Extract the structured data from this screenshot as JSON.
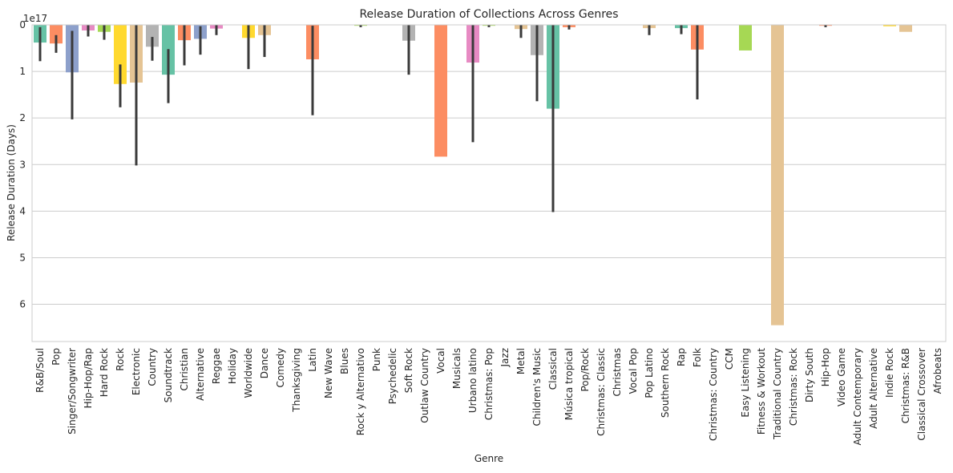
{
  "chart_data": {
    "type": "bar",
    "title": "Release Duration of Collections Across Genres",
    "xlabel": "Genre",
    "ylabel": "Release Duration (Days)",
    "y_offset_label": "1e17",
    "y_axis_inverted": true,
    "ylim": [
      0,
      6.8
    ],
    "y_ticks": [
      0,
      1,
      2,
      3,
      4,
      5,
      6
    ],
    "grid": "horizontal",
    "legend": "none",
    "value_unit_multiplier": "1e17",
    "categories": [
      "R&B/Soul",
      "Pop",
      "Singer/Songwriter",
      "Hip-Hop/Rap",
      "Hard Rock",
      "Rock",
      "Electronic",
      "Country",
      "Soundtrack",
      "Christian",
      "Alternative",
      "Reggae",
      "Holiday",
      "Worldwide",
      "Dance",
      "Comedy",
      "Thanksgiving",
      "Latin",
      "New Wave",
      "Blues",
      "Rock y Alternativo",
      "Punk",
      "Psychedelic",
      "Soft Rock",
      "Outlaw Country",
      "Vocal",
      "Musicals",
      "Urbano latino",
      "Christmas: Pop",
      "Jazz",
      "Metal",
      "Children's Music",
      "Classical",
      "Música tropical",
      "Pop/Rock",
      "Christmas: Classic",
      "Christmas",
      "Vocal Pop",
      "Pop Latino",
      "Southern Rock",
      "Rap",
      "Folk",
      "Christmas: Country",
      "CCM",
      "Easy Listening",
      "Fitness & Workout",
      "Traditional Country",
      "Christmas: Rock",
      "Dirty South",
      "Hip-Hop",
      "Video Game",
      "Adult Contemporary",
      "Adult Alternative",
      "Indie Rock",
      "Christmas: R&B",
      "Classical Crossover",
      "Afrobeats"
    ],
    "values": [
      0.38,
      0.4,
      1.02,
      0.12,
      0.15,
      1.27,
      1.24,
      0.47,
      1.07,
      0.33,
      0.3,
      0.08,
      0.0,
      0.28,
      0.22,
      0.0,
      0.0,
      0.74,
      0.0,
      0.0,
      0.02,
      0.0,
      0.0,
      0.34,
      0.0,
      2.83,
      0.0,
      0.81,
      0.02,
      0.0,
      0.09,
      0.65,
      1.8,
      0.05,
      0.0,
      0.0,
      0.0,
      0.0,
      0.07,
      0.0,
      0.07,
      0.53,
      0.0,
      0.0,
      0.55,
      0.0,
      6.45,
      0.0,
      0.0,
      0.02,
      0.0,
      0.0,
      0.0,
      0.03,
      0.15,
      0.0,
      0.0
    ],
    "error_bars": [
      [
        0.05,
        0.78
      ],
      [
        0.22,
        0.6
      ],
      [
        0.13,
        2.03
      ],
      [
        0.0,
        0.25
      ],
      [
        0.0,
        0.32
      ],
      [
        0.85,
        1.77
      ],
      [
        0.0,
        3.02
      ],
      [
        0.26,
        0.77
      ],
      [
        0.52,
        1.68
      ],
      [
        0.0,
        0.87
      ],
      [
        0.03,
        0.64
      ],
      [
        0.0,
        0.22
      ],
      null,
      [
        0.0,
        0.95
      ],
      [
        0.0,
        0.69
      ],
      null,
      null,
      [
        0.02,
        1.94
      ],
      null,
      null,
      [
        0.0,
        0.05
      ],
      null,
      null,
      [
        0.0,
        1.07
      ],
      null,
      null,
      null,
      [
        0.0,
        2.52
      ],
      [
        0.0,
        0.05
      ],
      null,
      [
        0.0,
        0.28
      ],
      [
        0.0,
        1.64
      ],
      [
        0.0,
        4.02
      ],
      [
        0.0,
        0.1
      ],
      null,
      null,
      null,
      null,
      [
        0.0,
        0.22
      ],
      null,
      [
        0.0,
        0.2
      ],
      [
        0.0,
        1.6
      ],
      null,
      null,
      null,
      null,
      null,
      null,
      null,
      [
        0.0,
        0.05
      ],
      null,
      null,
      null,
      null,
      null,
      null,
      null
    ],
    "colors": [
      "#66c2a5",
      "#fc8d62",
      "#8da0cb",
      "#e78ac3",
      "#a6d854",
      "#ffd92f",
      "#e5c494",
      "#b3b3b3",
      "#66c2a5",
      "#fc8d62",
      "#8da0cb",
      "#e78ac3",
      "#a6d854",
      "#ffd92f",
      "#e5c494",
      "#b3b3b3",
      "#66c2a5",
      "#fc8d62",
      "#8da0cb",
      "#e78ac3",
      "#a6d854",
      "#ffd92f",
      "#e5c494",
      "#b3b3b3",
      "#66c2a5",
      "#fc8d62",
      "#8da0cb",
      "#e78ac3",
      "#a6d854",
      "#ffd92f",
      "#e5c494",
      "#b3b3b3",
      "#66c2a5",
      "#fc8d62",
      "#8da0cb",
      "#e78ac3",
      "#a6d854",
      "#ffd92f",
      "#e5c494",
      "#b3b3b3",
      "#66c2a5",
      "#fc8d62",
      "#8da0cb",
      "#e78ac3",
      "#a6d854",
      "#ffd92f",
      "#e5c494",
      "#b3b3b3",
      "#66c2a5",
      "#fc8d62",
      "#8da0cb",
      "#e78ac3",
      "#a6d854",
      "#ffd92f",
      "#e5c494",
      "#b3b3b3",
      "#66c2a5"
    ],
    "errorbar_color": "#3a3a3a",
    "grid_color": "#cccccc"
  }
}
